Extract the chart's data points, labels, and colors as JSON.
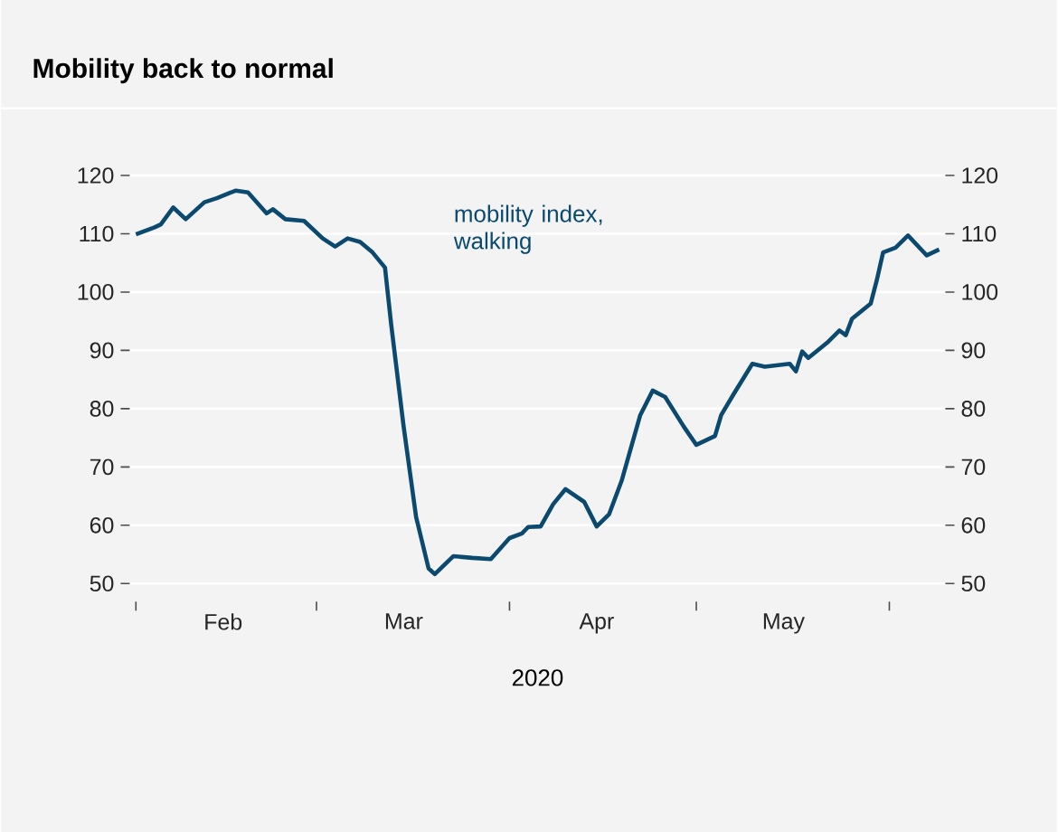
{
  "chart_data": {
    "type": "line",
    "title": "Mobility back to normal",
    "xlabel": "2020",
    "x": [
      "2020-02-01",
      "2020-02-04",
      "2020-02-05",
      "2020-02-07",
      "2020-02-09",
      "2020-02-12",
      "2020-02-14",
      "2020-02-17",
      "2020-02-19",
      "2020-02-21",
      "2020-02-22",
      "2020-02-23",
      "2020-02-25",
      "2020-02-28",
      "2020-03-02",
      "2020-03-04",
      "2020-03-06",
      "2020-03-08",
      "2020-03-10",
      "2020-03-12",
      "2020-03-13",
      "2020-03-15",
      "2020-03-17",
      "2020-03-19",
      "2020-03-20",
      "2020-03-23",
      "2020-03-26",
      "2020-03-29",
      "2020-04-01",
      "2020-04-03",
      "2020-04-04",
      "2020-04-06",
      "2020-04-08",
      "2020-04-10",
      "2020-04-13",
      "2020-04-15",
      "2020-04-17",
      "2020-04-19",
      "2020-04-22",
      "2020-04-24",
      "2020-04-26",
      "2020-04-29",
      "2020-05-01",
      "2020-05-04",
      "2020-05-05",
      "2020-05-07",
      "2020-05-10",
      "2020-05-12",
      "2020-05-16",
      "2020-05-17",
      "2020-05-18",
      "2020-05-19",
      "2020-05-22",
      "2020-05-24",
      "2020-05-25",
      "2020-05-26",
      "2020-05-29",
      "2020-05-30",
      "2020-05-31",
      "2020-06-02",
      "2020-06-04",
      "2020-06-07",
      "2020-06-09"
    ],
    "series": [
      {
        "name": "mobility index, walking",
        "color": "#0b4a6e",
        "values": [
          109.9,
          111.1,
          111.6,
          114.5,
          112.5,
          115.4,
          116.1,
          117.4,
          117.1,
          114.7,
          113.5,
          114.2,
          112.5,
          112.2,
          109.2,
          107.8,
          109.2,
          108.6,
          106.8,
          104.2,
          94.4,
          76.9,
          61.4,
          52.6,
          51.6,
          54.7,
          54.4,
          54.2,
          57.8,
          58.6,
          59.7,
          59.8,
          63.6,
          66.2,
          64.0,
          59.8,
          61.9,
          67.6,
          78.9,
          83.1,
          82.0,
          76.9,
          73.8,
          75.3,
          78.9,
          82.5,
          87.7,
          87.2,
          87.7,
          86.4,
          89.8,
          88.7,
          91.3,
          93.4,
          92.6,
          95.4,
          98.0,
          102.1,
          106.8,
          107.6,
          109.7,
          106.3,
          107.3
        ]
      }
    ],
    "xlim": [
      "2020-01-31",
      "2020-06-10"
    ],
    "xticks": [
      {
        "value": "2020-02-01",
        "label": null
      },
      {
        "value": "2020-02-15",
        "label": "Feb"
      },
      {
        "value": "2020-03-01",
        "label": null
      },
      {
        "value": "2020-03-15",
        "label": "Mar"
      },
      {
        "value": "2020-04-01",
        "label": null
      },
      {
        "value": "2020-04-15",
        "label": "Apr"
      },
      {
        "value": "2020-05-01",
        "label": null
      },
      {
        "value": "2020-05-15",
        "label": "May"
      },
      {
        "value": "2020-06-01",
        "label": null
      }
    ],
    "ylim": [
      50,
      120
    ],
    "yticks": [
      50,
      60,
      70,
      80,
      90,
      100,
      110,
      120
    ],
    "y2lim": [
      50,
      120
    ],
    "y2ticks": [
      50,
      60,
      70,
      80,
      90,
      100,
      110,
      120
    ],
    "grid": "y",
    "marker": "none",
    "line_style": "solid"
  }
}
